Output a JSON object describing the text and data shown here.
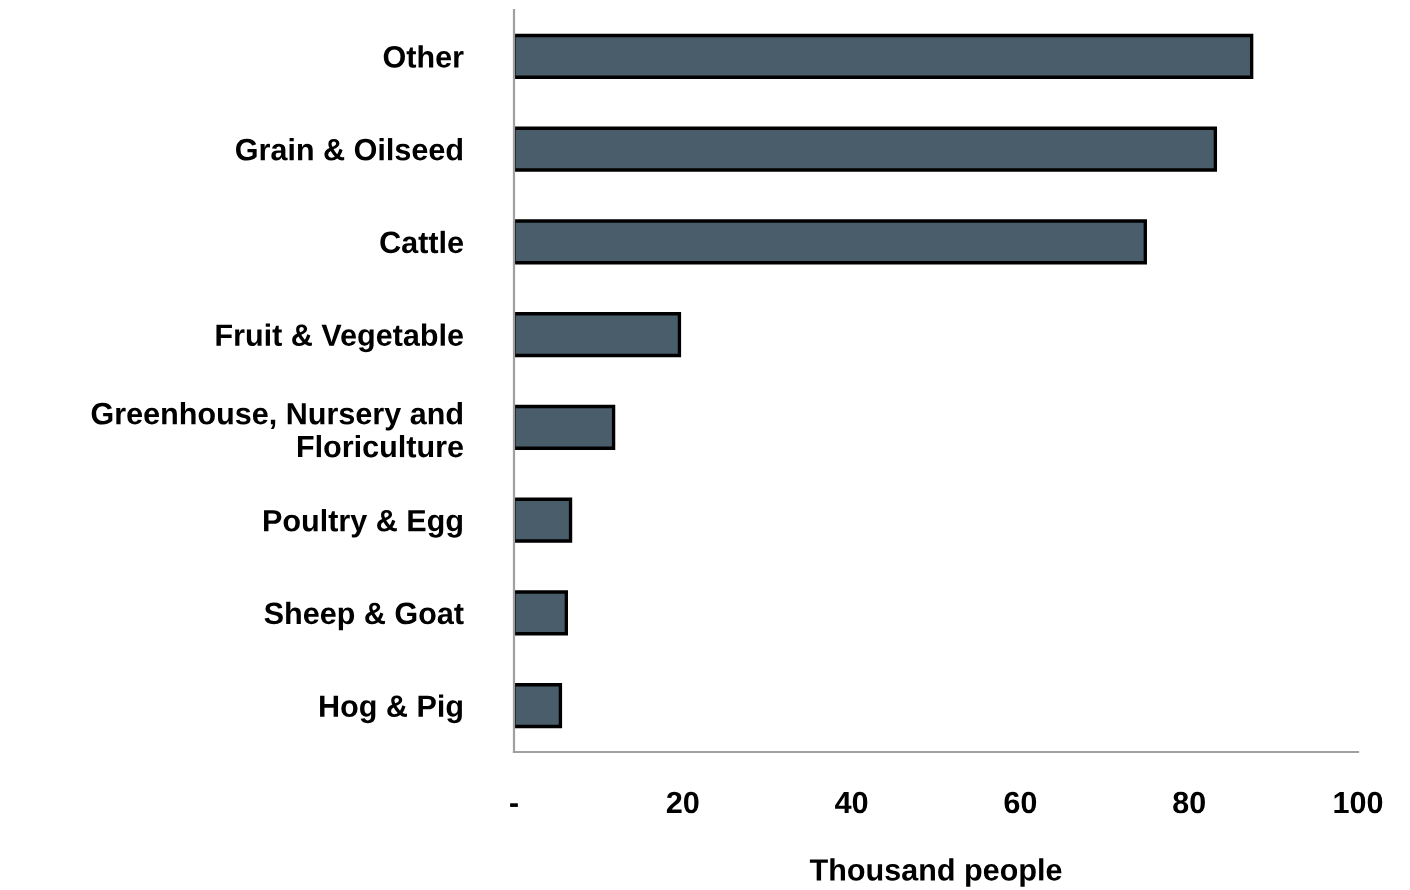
{
  "chart_data": {
    "type": "bar",
    "orientation": "horizontal",
    "xlabel": "Thousand people",
    "categories": [
      "Other",
      "Grain & Oilseed",
      "Cattle",
      "Fruit & Vegetable",
      "Greenhouse, Nursery and\nFloriculture",
      "Poultry & Egg",
      "Sheep & Goat",
      "Hog & Pig"
    ],
    "values": [
      87.4,
      83.1,
      74.8,
      19.6,
      11.8,
      6.7,
      6.2,
      5.5
    ],
    "color": "#4a5d6b",
    "xlim": [
      0,
      100
    ],
    "xticks": [
      {
        "value": 0,
        "label": "-"
      },
      20,
      40,
      60,
      80,
      100
    ],
    "grid": false
  }
}
